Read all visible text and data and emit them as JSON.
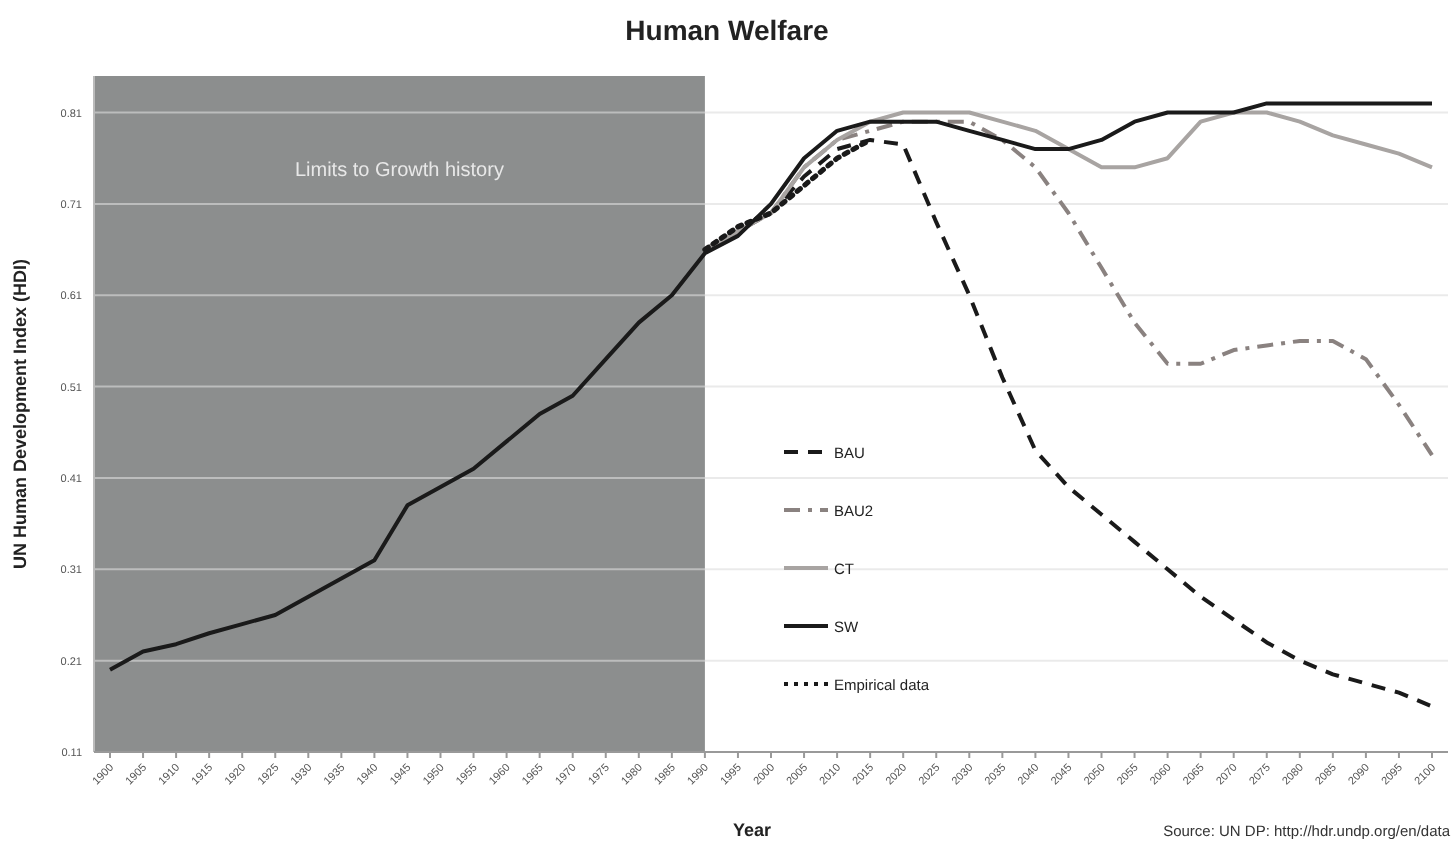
{
  "chart_data": {
    "type": "line",
    "title": "Human Welfare",
    "xlabel": "Year",
    "ylabel": "UN Human Development Index (HDI)",
    "annotations": [
      "Source: UN DP: http://hdr.undp.org/en/data"
    ],
    "categories": [
      "1900",
      "1905",
      "1910",
      "1915",
      "1920",
      "1925",
      "1930",
      "1935",
      "1940",
      "1945",
      "1950",
      "1955",
      "1960",
      "1965",
      "1970",
      "1975",
      "1980",
      "1985",
      "1990",
      "1995",
      "2000",
      "2005",
      "2010",
      "2015",
      "2020",
      "2025",
      "2030",
      "2035",
      "2040",
      "2045",
      "2050",
      "2055",
      "2060",
      "2065",
      "2070",
      "2075",
      "2080",
      "2085",
      "2090",
      "2095",
      "2100"
    ],
    "ylim": [
      0.11,
      0.85
    ],
    "yticks": [
      0.11,
      0.21,
      0.31,
      0.41,
      0.51,
      0.61,
      0.71,
      0.81
    ],
    "grid": "y",
    "legend": "bottom",
    "bands": [
      {
        "axis": "x",
        "from": "1900",
        "to": "1990",
        "label": "Limits to Growth history",
        "color": "#8c8e8e"
      }
    ],
    "series": [
      {
        "name": "BAU",
        "color": "#1a1a1a",
        "line_style": "dashed",
        "values": [
          null,
          null,
          null,
          null,
          null,
          null,
          null,
          null,
          null,
          null,
          null,
          null,
          null,
          null,
          null,
          null,
          null,
          null,
          0.66,
          0.68,
          0.7,
          0.74,
          0.77,
          0.78,
          0.775,
          0.69,
          0.61,
          0.52,
          0.44,
          0.4,
          0.37,
          0.34,
          0.31,
          0.28,
          0.255,
          0.23,
          0.21,
          0.195,
          0.185,
          0.175,
          0.16
        ]
      },
      {
        "name": "BAU2",
        "color": "#8a8280",
        "line_style": "dashdot",
        "values": [
          null,
          null,
          null,
          null,
          null,
          null,
          null,
          null,
          null,
          null,
          null,
          null,
          null,
          null,
          null,
          null,
          null,
          null,
          0.66,
          0.68,
          0.7,
          0.75,
          0.78,
          0.79,
          0.8,
          0.8,
          0.8,
          0.78,
          0.75,
          0.7,
          0.64,
          0.58,
          0.535,
          0.535,
          0.55,
          0.555,
          0.56,
          0.56,
          0.54,
          0.49,
          0.435
        ]
      },
      {
        "name": "CT",
        "color": "#a8a4a2",
        "line_style": "solid",
        "values": [
          null,
          null,
          null,
          null,
          null,
          null,
          null,
          null,
          null,
          null,
          null,
          null,
          null,
          null,
          null,
          null,
          null,
          null,
          0.66,
          0.68,
          0.7,
          0.75,
          0.78,
          0.8,
          0.81,
          0.81,
          0.81,
          0.8,
          0.79,
          0.77,
          0.75,
          0.75,
          0.76,
          0.8,
          0.81,
          0.81,
          0.8,
          0.785,
          0.775,
          0.765,
          0.75
        ]
      },
      {
        "name": "SW",
        "color": "#1a1a1a",
        "line_style": "solid",
        "values": [
          0.2,
          0.22,
          0.228,
          0.24,
          0.25,
          0.26,
          0.28,
          0.3,
          0.32,
          0.38,
          0.4,
          0.42,
          0.45,
          0.48,
          0.5,
          0.54,
          0.58,
          0.61,
          0.656,
          0.675,
          0.71,
          0.76,
          0.79,
          0.8,
          0.8,
          0.8,
          0.79,
          0.78,
          0.77,
          0.77,
          0.78,
          0.8,
          0.81,
          0.81,
          0.81,
          0.82,
          0.82,
          0.82,
          0.82,
          0.82,
          0.82
        ]
      },
      {
        "name": "Empirical data",
        "color": "#1a1a1a",
        "line_style": "dotted",
        "values": [
          null,
          null,
          null,
          null,
          null,
          null,
          null,
          null,
          null,
          null,
          null,
          null,
          null,
          null,
          null,
          null,
          null,
          null,
          0.66,
          0.685,
          0.7,
          0.73,
          0.76,
          0.78,
          null,
          null,
          null,
          null,
          null,
          null,
          null,
          null,
          null,
          null,
          null,
          null,
          null,
          null,
          null,
          null,
          null
        ]
      }
    ]
  }
}
